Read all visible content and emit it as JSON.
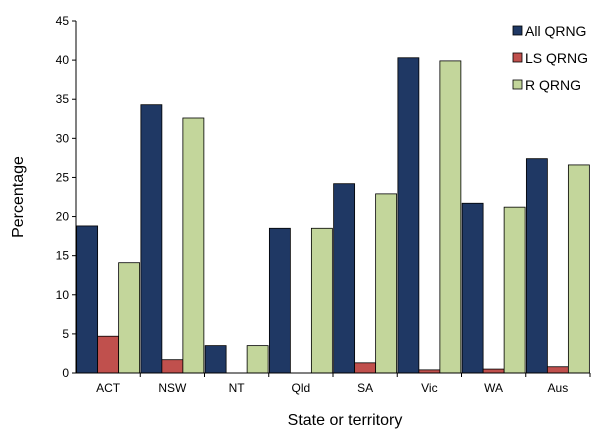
{
  "chart_data": {
    "type": "bar",
    "title": "",
    "xlabel": "State or territory",
    "ylabel": "Percentage",
    "ylim": [
      0,
      45
    ],
    "yticks": [
      0,
      5,
      10,
      15,
      20,
      25,
      30,
      35,
      40,
      45
    ],
    "grid": false,
    "legend_position": "top-right",
    "categories": [
      "ACT",
      "NSW",
      "NT",
      "Qld",
      "SA",
      "Vic",
      "WA",
      "Aus"
    ],
    "series": [
      {
        "name": "All QRNG",
        "color": "#1f3864",
        "values": [
          18.8,
          34.3,
          3.5,
          18.5,
          24.2,
          40.3,
          21.7,
          27.4
        ]
      },
      {
        "name": "LS QRNG",
        "color": "#c0504d",
        "values": [
          4.7,
          1.7,
          0,
          0,
          1.3,
          0.4,
          0.5,
          0.8
        ]
      },
      {
        "name": "R QRNG",
        "color": "#c3d69b",
        "values": [
          14.1,
          32.6,
          3.5,
          18.5,
          22.9,
          39.9,
          21.2,
          26.6
        ]
      }
    ]
  }
}
